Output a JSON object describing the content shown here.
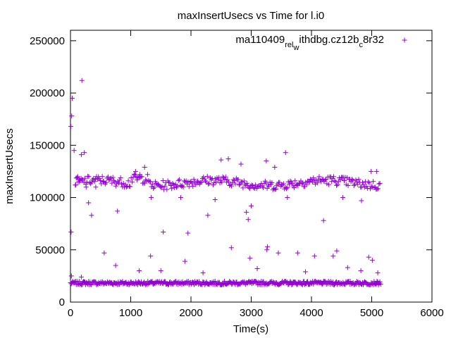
{
  "chart_data": {
    "type": "scatter",
    "title": "maxInsertUsecs vs Time for l.i0",
    "xlabel": "Time(s)",
    "ylabel": "maxInsertUsecs",
    "xlim": [
      0,
      6000
    ],
    "ylim": [
      0,
      260000
    ],
    "xticks": [
      0,
      1000,
      2000,
      3000,
      4000,
      5000,
      6000
    ],
    "yticks": [
      0,
      50000,
      100000,
      150000,
      200000,
      250000
    ],
    "xtick_labels": [
      "0",
      "1000",
      "2000",
      "3000",
      "4000",
      "5000",
      "6000"
    ],
    "ytick_labels": [
      "0",
      "50000",
      "100000",
      "150000",
      "200000",
      "250000"
    ],
    "legend": {
      "position": "top-right",
      "label_parts": [
        "ma110409",
        "rel",
        "w",
        "ithdbg.cz12b",
        "c",
        "8r32"
      ]
    },
    "series": [
      {
        "name": "ma110409_rel_withdbg.cz12b_c8r32",
        "color": "#9400d3",
        "marker": "plus",
        "points": [
          [
            5,
            168000
          ],
          [
            10,
            67000
          ],
          [
            20,
            178000
          ],
          [
            30,
            195000
          ],
          [
            60,
            145000
          ],
          [
            90,
            112000
          ],
          [
            120,
            120000
          ],
          [
            150,
            115000
          ],
          [
            180,
            141000
          ],
          [
            190,
            212000
          ],
          [
            230,
            143000
          ],
          [
            260,
            110000
          ],
          [
            300,
            95000
          ],
          [
            350,
            83000
          ],
          [
            420,
            110000
          ],
          [
            560,
            47000
          ],
          [
            780,
            87000
          ],
          [
            1080,
            125000
          ],
          [
            1150,
            122000
          ],
          [
            1230,
            129000
          ],
          [
            1340,
            100000
          ],
          [
            1540,
            67000
          ],
          [
            1830,
            100000
          ],
          [
            1950,
            66000
          ],
          [
            2280,
            83000
          ],
          [
            2400,
            98000
          ],
          [
            2500,
            136000
          ],
          [
            2620,
            137000
          ],
          [
            2830,
            132000
          ],
          [
            2920,
            86000
          ],
          [
            2950,
            79000
          ],
          [
            3000,
            92000
          ],
          [
            3250,
            135000
          ],
          [
            3390,
            129000
          ],
          [
            3570,
            143000
          ],
          [
            3600,
            100000
          ],
          [
            4200,
            78000
          ],
          [
            4520,
            100000
          ],
          [
            4830,
            97000
          ],
          [
            4990,
            125000
          ],
          [
            5080,
            125000
          ],
          [
            750,
            35000
          ],
          [
            1140,
            30000
          ],
          [
            1330,
            44000
          ],
          [
            1900,
            39000
          ],
          [
            2670,
            52000
          ],
          [
            2980,
            42000
          ],
          [
            3270,
            53000
          ],
          [
            3260,
            50000
          ],
          [
            3450,
            47000
          ],
          [
            3770,
            47000
          ],
          [
            4050,
            44000
          ],
          [
            4360,
            44000
          ],
          [
            4420,
            49000
          ],
          [
            4950,
            43000
          ],
          [
            5010,
            40000
          ],
          [
            5100,
            28000
          ],
          [
            15,
            25000
          ],
          [
            180,
            24000
          ],
          [
            1500,
            30000
          ],
          [
            2200,
            28000
          ],
          [
            3100,
            32000
          ],
          [
            3900,
            29000
          ],
          [
            4600,
            33000
          ],
          [
            4820,
            30000
          ]
        ]
      }
    ]
  }
}
